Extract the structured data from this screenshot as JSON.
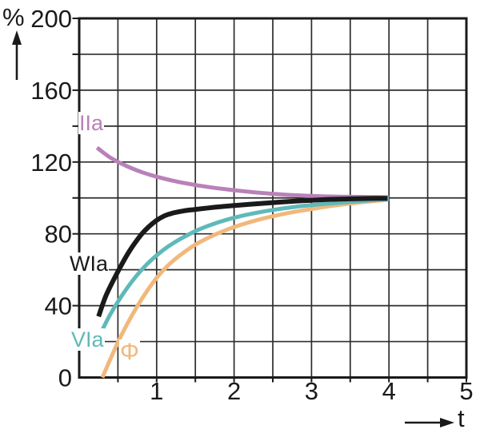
{
  "axes": {
    "y_unit": "%",
    "x_unit": "t",
    "x_tick_labels": [
      "1",
      "2",
      "3",
      "4",
      "5"
    ],
    "y_tick_labels": [
      "200",
      "160",
      "120",
      "80",
      "40",
      "0"
    ],
    "x_tick_values": [
      1,
      2,
      3,
      4,
      5
    ],
    "y_tick_values": [
      200,
      160,
      120,
      80,
      40,
      0
    ],
    "x_grid_step": 0.5,
    "y_grid_step": 20
  },
  "colors": {
    "background": "#ffffff",
    "grid": "#2d2d2d",
    "frame": "#1a1a1a",
    "text": "#1a1a1a"
  },
  "chart_data": {
    "type": "line",
    "title": "",
    "xlabel": "t",
    "ylabel": "%",
    "xlim": [
      0,
      5
    ],
    "ylim": [
      0,
      200
    ],
    "grid": true,
    "legend_position": "inline-labels",
    "series": [
      {
        "id": "IIa",
        "name": "IIa",
        "color": "#b981b9",
        "x": [
          0.23,
          0.4,
          0.6,
          0.8,
          1.0,
          1.25,
          1.5,
          1.75,
          2.0,
          2.25,
          2.5,
          2.75,
          3.0,
          3.25,
          3.5,
          3.75,
          4.0
        ],
        "y": [
          128,
          122.5,
          118,
          114.5,
          111.8,
          109.2,
          107.2,
          105.6,
          104.3,
          103.2,
          102.3,
          101.6,
          101.1,
          100.8,
          100.6,
          100.45,
          100.35
        ]
      },
      {
        "id": "phi",
        "name": "Φ",
        "color": "#f1b87c",
        "x": [
          0.3,
          0.42,
          0.55,
          0.7,
          0.85,
          1.0,
          1.15,
          1.3,
          1.5,
          1.7,
          1.9,
          2.1,
          2.3,
          2.5,
          2.75,
          3.0,
          3.3,
          3.6,
          3.98
        ],
        "y": [
          0,
          12,
          24,
          36,
          46.5,
          55.5,
          62.5,
          68,
          74,
          78.5,
          82.2,
          85.2,
          87.7,
          89.8,
          92,
          93.8,
          95.8,
          97.4,
          99.0
        ]
      },
      {
        "id": "VIa",
        "name": "VIa",
        "color": "#5fb9b9",
        "x": [
          0.27,
          0.4,
          0.55,
          0.7,
          0.85,
          1.0,
          1.15,
          1.3,
          1.5,
          1.7,
          1.9,
          2.1,
          2.3,
          2.5,
          2.75,
          3.0,
          3.25,
          3.5,
          3.75,
          4.0
        ],
        "y": [
          24,
          35,
          45.5,
          54.5,
          62,
          68,
          73,
          77,
          81.5,
          85,
          87.8,
          90,
          91.8,
          93.3,
          94.8,
          96,
          97,
          97.8,
          98.6,
          99.3
        ]
      },
      {
        "id": "WIa",
        "name": "WIa",
        "color": "#1a1a1a",
        "x": [
          0.25,
          0.35,
          0.5,
          0.65,
          0.8,
          0.9,
          1.0,
          1.1,
          1.2,
          1.35,
          1.5,
          1.75,
          2.0,
          2.25,
          2.5,
          2.75,
          3.0,
          3.25,
          3.5,
          3.75,
          3.98
        ],
        "y": [
          34,
          46,
          59,
          70.5,
          79.5,
          84,
          87.5,
          90,
          91.5,
          92.8,
          93.6,
          94.8,
          95.8,
          96.6,
          97.4,
          98.1,
          98.7,
          99.2,
          99.5,
          99.7,
          99.8
        ]
      }
    ]
  }
}
